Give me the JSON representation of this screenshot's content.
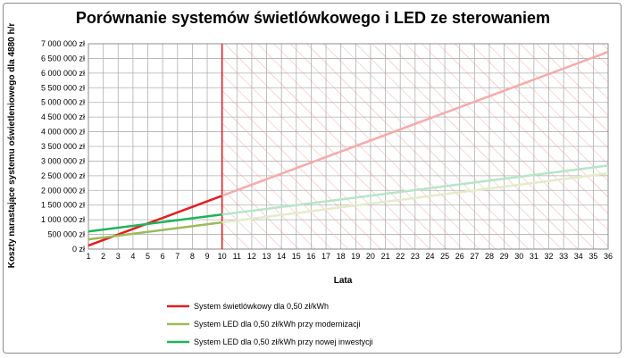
{
  "chart_data": {
    "type": "line",
    "title": "Porównanie systemów świetlówkowego i LED ze sterowaniem",
    "xlabel": "Lata",
    "ylabel": "Koszty narastające systemu oświetleniowego dla 4880 h/r",
    "x": [
      1,
      2,
      3,
      4,
      5,
      6,
      7,
      8,
      9,
      10,
      11,
      12,
      13,
      14,
      15,
      16,
      17,
      18,
      19,
      20,
      21,
      22,
      23,
      24,
      25,
      26,
      27,
      28,
      29,
      30,
      31,
      32,
      33,
      34,
      35,
      36
    ],
    "xlim": [
      1,
      36
    ],
    "ylim": [
      0,
      7000000
    ],
    "y_ticks": [
      "0 zł",
      "500 000 zł",
      "1 000 000 zł",
      "1 500 000 zł",
      "2 000 000 zł",
      "2 500 000 zł",
      "3 000 000 zł",
      "3 500 000 zł",
      "4 000 000 zł",
      "4 500 000 zł",
      "5 000 000 zł",
      "5 500 000 zł",
      "6 000 000 zł",
      "6 500 000 zł",
      "7 000 000 zł"
    ],
    "forecast_from_year": 10,
    "series": [
      {
        "name": "System świetlówkowy dla 0,50 zł/kWh",
        "color": "#e41e1e",
        "faded_color": "#f6aaaa",
        "start": 120000,
        "end": 6720000
      },
      {
        "name": "System LED dla 0,50 zł/kWh przy modernizacji",
        "color": "#9bbb59",
        "faded_color": "#e3ecc8",
        "start": 330000,
        "end": 2580000
      },
      {
        "name": "System LED dla 0,50 zł/kWh przy nowej inwestycji",
        "color": "#1fb45a",
        "faded_color": "#b5e6c6",
        "start": 600000,
        "end": 2850000
      }
    ],
    "grid": true,
    "legend": "bottom-left"
  }
}
